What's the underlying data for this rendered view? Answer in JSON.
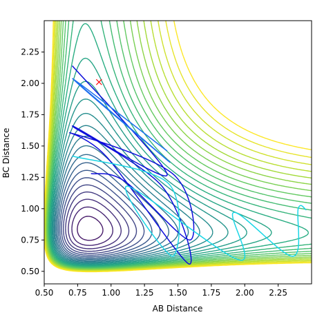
{
  "chart_data": {
    "type": "contour",
    "title": "",
    "xlabel": "AB Distance",
    "ylabel": "BC Distance",
    "xlim": [
      0.5,
      2.5
    ],
    "ylim": [
      0.4,
      2.5
    ],
    "x_ticks": [
      0.5,
      0.75,
      1.0,
      1.25,
      1.5,
      1.75,
      2.0,
      2.25
    ],
    "x_tick_labels": [
      "0.50",
      "0.75",
      "1.00",
      "1.25",
      "1.50",
      "1.75",
      "2.00",
      "2.25"
    ],
    "y_ticks": [
      0.5,
      0.75,
      1.0,
      1.25,
      1.5,
      1.75,
      2.0,
      2.25
    ],
    "y_tick_labels": [
      "0.50",
      "0.75",
      "1.00",
      "1.25",
      "1.50",
      "1.75",
      "2.00",
      "2.25"
    ],
    "grid": false,
    "legend": "none",
    "colormap": "viridis",
    "contour_levels": 30,
    "contour_colors": [
      "#440154",
      "#472c7a",
      "#3b518b",
      "#2c718e",
      "#21908d",
      "#27ad81",
      "#5cc863",
      "#aadc32",
      "#fde725"
    ],
    "trajectories": [
      {
        "color": "#0d0ddb",
        "points": [
          [
            0.71,
            2.14
          ],
          [
            1.42,
            1.27
          ],
          [
            0.71,
            1.66
          ],
          [
            1.38,
            1.18
          ],
          [
            1.58,
            0.56
          ],
          [
            0.97,
            1.41
          ],
          [
            0.71,
            1.6
          ],
          [
            1.47,
            1.27
          ],
          [
            1.59,
            0.75
          ],
          [
            1.1,
            1.22
          ],
          [
            0.85,
            1.28
          ]
        ]
      },
      {
        "color": "#1e70ee",
        "points": [
          [
            0.71,
            2.04
          ],
          [
            1.44,
            1.37
          ],
          [
            0.72,
            2.03
          ],
          [
            1.42,
            1.46
          ]
        ]
      },
      {
        "color": "#19d6e6",
        "points": [
          [
            0.71,
            1.42
          ],
          [
            1.43,
            1.2
          ],
          [
            1.46,
            0.62
          ],
          [
            1.12,
            1.18
          ],
          [
            1.96,
            0.59
          ],
          [
            1.92,
            0.97
          ],
          [
            2.36,
            0.62
          ],
          [
            2.4,
            1.0
          ],
          [
            2.46,
            0.99
          ]
        ]
      }
    ],
    "marker": {
      "symbol": "x",
      "color": "#ff0000",
      "x": 0.91,
      "y": 2.01
    }
  }
}
